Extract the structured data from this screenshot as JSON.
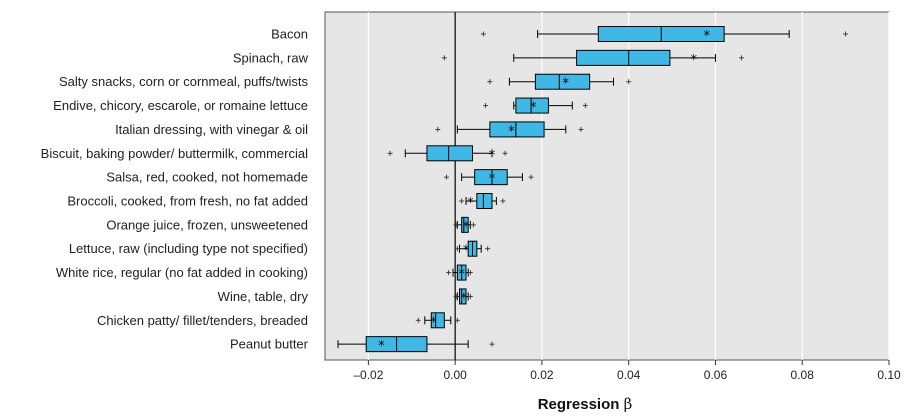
{
  "chart_data": {
    "type": "box",
    "xlabel": "Regression",
    "xlabel_symbol": "β",
    "xlim": [
      -0.03,
      0.1
    ],
    "xticks": [
      -0.02,
      0.0,
      0.02,
      0.04,
      0.06,
      0.08,
      0.1
    ],
    "xtick_labels": [
      "–0.02",
      "0.00",
      "0.02",
      "0.04",
      "0.06",
      "0.08",
      "0.10"
    ],
    "grid": "vertical",
    "background_color": "#e6e6e6",
    "box_color": "#3fb8e6",
    "zero_line": true,
    "categories": [
      "Bacon",
      "Spinach, raw",
      "Salty snacks, corn or cornmeal, puffs/twists",
      "Endive, chicory, escarole, or romaine lettuce",
      "Italian dressing, with vinegar & oil",
      "Biscuit, baking powder/ buttermilk, commercial",
      "Salsa, red, cooked, not homemade",
      "Broccoli, cooked, from fresh, no fat added",
      "Orange juice, frozen, unsweetened",
      "Lettuce, raw (including type not specified)",
      "White rice, regular (no fat added in cooking)",
      "Wine, table, dry",
      "Chicken patty/ fillet/tenders, breaded",
      "Peanut butter"
    ],
    "boxes": [
      {
        "whisker_low": 0.019,
        "q1": 0.033,
        "median": 0.0475,
        "q3": 0.062,
        "whisker_high": 0.077,
        "mean": 0.058,
        "outliers": [
          0.0065,
          0.09
        ]
      },
      {
        "whisker_low": 0.0135,
        "q1": 0.028,
        "median": 0.04,
        "q3": 0.0495,
        "whisker_high": 0.06,
        "mean": 0.055,
        "outliers": [
          -0.0025,
          0.066
        ]
      },
      {
        "whisker_low": 0.0125,
        "q1": 0.0185,
        "median": 0.024,
        "q3": 0.031,
        "whisker_high": 0.0365,
        "mean": 0.0255,
        "outliers": [
          0.008,
          0.04
        ]
      },
      {
        "whisker_low": 0.0135,
        "q1": 0.014,
        "median": 0.0175,
        "q3": 0.0215,
        "whisker_high": 0.027,
        "mean": 0.018,
        "outliers": [
          0.007,
          0.03
        ]
      },
      {
        "whisker_low": 0.0005,
        "q1": 0.008,
        "median": 0.014,
        "q3": 0.0205,
        "whisker_high": 0.0255,
        "mean": 0.013,
        "outliers": [
          -0.004,
          0.029
        ]
      },
      {
        "whisker_low": -0.0115,
        "q1": -0.0065,
        "median": -0.0015,
        "q3": 0.004,
        "whisker_high": 0.0085,
        "mean": 0.0085,
        "outliers": [
          -0.015,
          0.0115
        ]
      },
      {
        "whisker_low": 0.0015,
        "q1": 0.0045,
        "median": 0.0085,
        "q3": 0.012,
        "whisker_high": 0.0155,
        "mean": 0.0085,
        "outliers": [
          -0.002,
          0.0175
        ]
      },
      {
        "whisker_low": 0.0025,
        "q1": 0.005,
        "median": 0.0065,
        "q3": 0.0085,
        "whisker_high": 0.0095,
        "mean": 0.0035,
        "outliers": [
          0.0015,
          0.011
        ]
      },
      {
        "whisker_low": 0.0005,
        "q1": 0.0015,
        "median": 0.002,
        "q3": 0.003,
        "whisker_high": 0.0035,
        "mean": 0.0025,
        "outliers": [
          0.0002,
          0.0042
        ]
      },
      {
        "whisker_low": 0.001,
        "q1": 0.003,
        "median": 0.004,
        "q3": 0.005,
        "whisker_high": 0.006,
        "mean": 0.0025,
        "outliers": [
          0.0005,
          0.0075
        ]
      },
      {
        "whisker_low": -0.0005,
        "q1": 0.0005,
        "median": 0.0015,
        "q3": 0.0025,
        "whisker_high": 0.003,
        "mean": 0.0015,
        "outliers": [
          -0.0015,
          0.0035
        ]
      },
      {
        "whisker_low": 0.0005,
        "q1": 0.001,
        "median": 0.0015,
        "q3": 0.0025,
        "whisker_high": 0.003,
        "mean": 0.002,
        "outliers": [
          0.0002,
          0.0035
        ]
      },
      {
        "whisker_low": -0.007,
        "q1": -0.0055,
        "median": -0.0045,
        "q3": -0.0025,
        "whisker_high": -0.001,
        "mean": -0.005,
        "outliers": [
          -0.0085,
          0.0005
        ]
      },
      {
        "whisker_low": -0.027,
        "q1": -0.0205,
        "median": -0.0135,
        "q3": -0.0065,
        "whisker_high": 0.003,
        "mean": -0.017,
        "outliers": [
          0.0085
        ]
      }
    ]
  }
}
